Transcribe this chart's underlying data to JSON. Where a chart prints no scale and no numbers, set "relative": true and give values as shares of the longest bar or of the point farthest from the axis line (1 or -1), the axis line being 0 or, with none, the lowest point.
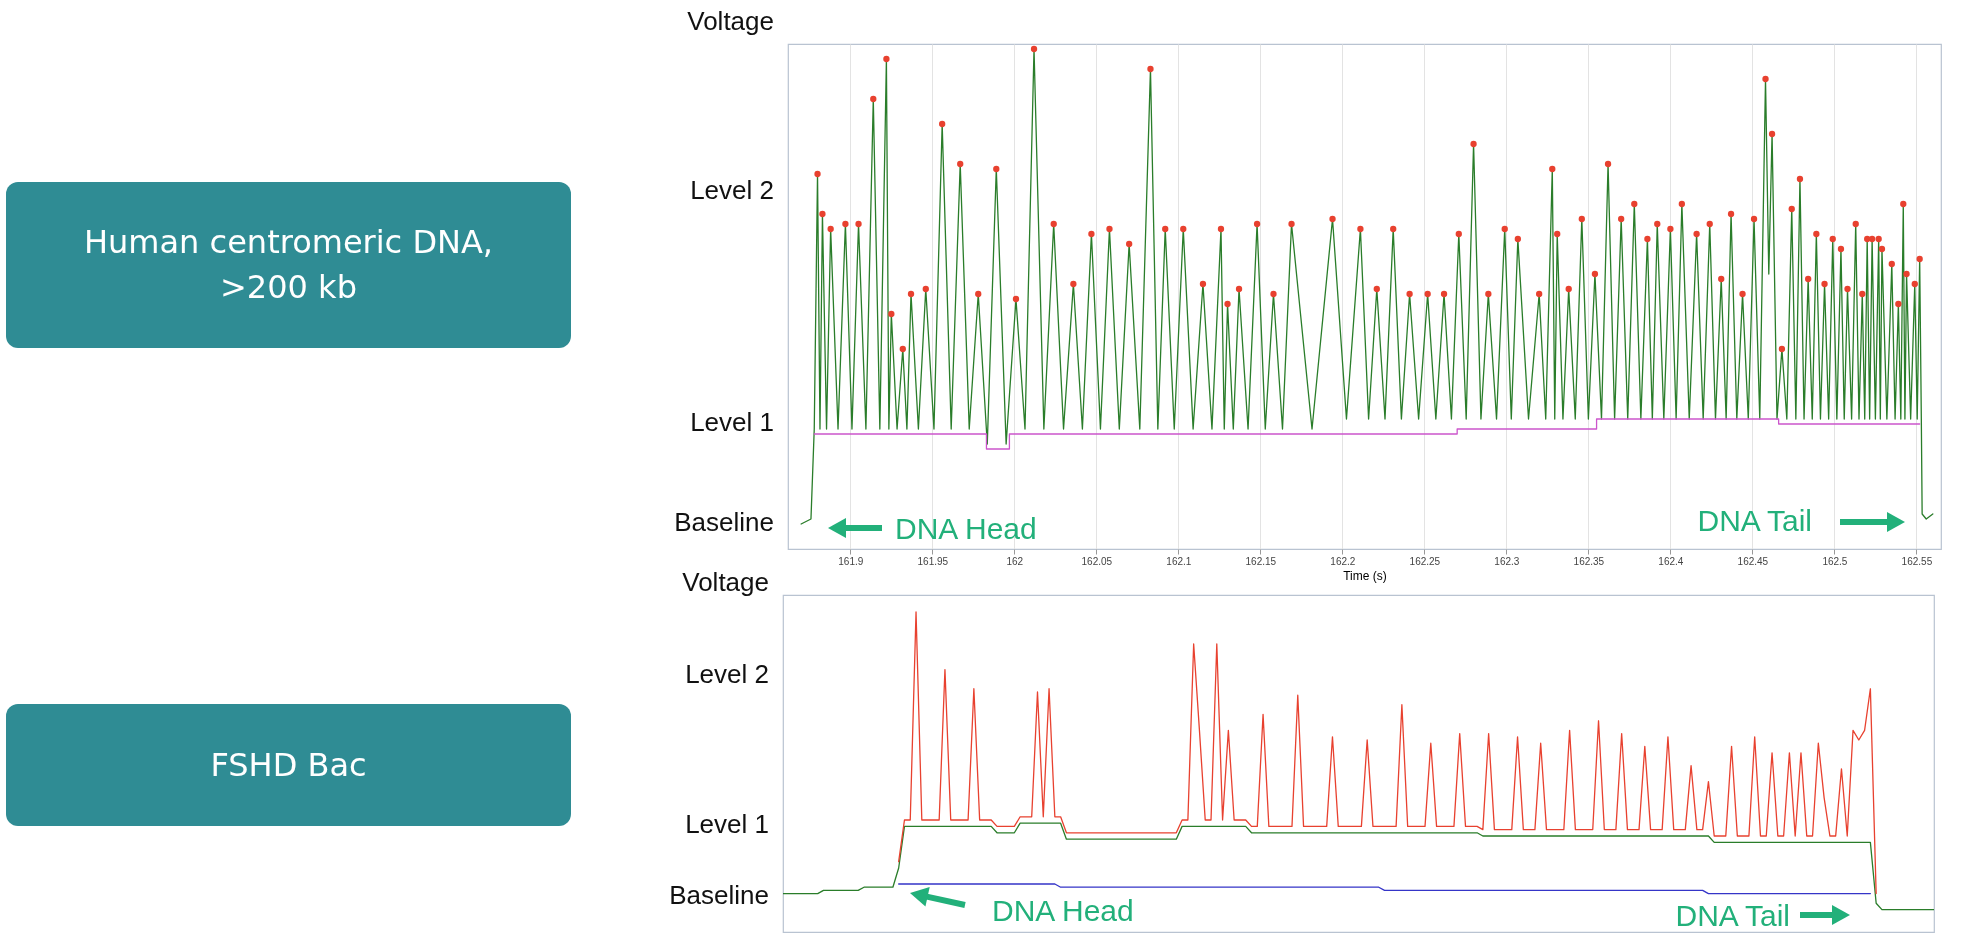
{
  "chart_data": [
    {
      "type": "line",
      "xlabel": "Time (s)",
      "ylabel": "Voltage",
      "relative": true,
      "grid": "x",
      "xlim": [
        161.862,
        162.565
      ],
      "xticks": [
        161.9,
        161.95,
        162,
        162.05,
        162.1,
        162.15,
        162.2,
        162.25,
        162.3,
        162.35,
        162.4,
        162.45,
        162.5,
        162.55
      ],
      "annotations": [
        "Human centromeric DNA, >200 kb",
        "Level 2",
        "Level 1",
        "Baseline",
        "DNA Head",
        "DNA Tail"
      ],
      "series": [
        {
          "color": "#2a7d2a",
          "x": [
            161.87,
            161.876,
            161.878,
            161.88,
            161.8815,
            161.883,
            161.8855,
            161.888,
            161.8925,
            161.897,
            161.901,
            161.905,
            161.9095,
            161.914,
            161.918,
            161.922,
            161.9235,
            161.925,
            161.9285,
            161.932,
            161.9345,
            161.937,
            161.9415,
            161.946,
            161.951,
            161.956,
            161.9615,
            161.967,
            161.9725,
            161.978,
            161.9835,
            161.989,
            161.995,
            162.001,
            162.0065,
            162.012,
            162.018,
            162.024,
            162.03,
            162.036,
            162.0415,
            162.047,
            162.0525,
            162.058,
            162.064,
            162.07,
            162.0765,
            162.083,
            162.0875,
            162.092,
            162.0975,
            162.103,
            162.109,
            162.115,
            162.1205,
            162.126,
            162.128,
            162.13,
            162.1335,
            162.137,
            162.1425,
            162.148,
            162.153,
            162.158,
            162.1635,
            162.169,
            162.1815,
            162.194,
            162.2025,
            162.211,
            162.216,
            162.221,
            162.226,
            162.231,
            162.236,
            162.241,
            162.2465,
            162.252,
            162.257,
            162.262,
            162.2665,
            162.271,
            162.2755,
            162.28,
            162.2845,
            162.289,
            162.294,
            162.299,
            162.303,
            162.307,
            162.3135,
            162.32,
            162.324,
            162.328,
            162.3295,
            162.331,
            162.3345,
            162.338,
            162.342,
            162.346,
            162.35,
            162.354,
            162.358,
            162.362,
            162.366,
            162.37,
            162.374,
            162.378,
            162.382,
            162.386,
            162.389,
            162.392,
            162.396,
            162.4,
            162.4035,
            162.407,
            162.4115,
            162.416,
            162.42,
            162.424,
            162.4275,
            162.431,
            162.434,
            162.437,
            162.4405,
            162.444,
            162.4475,
            162.451,
            162.4545,
            162.458,
            162.46,
            162.462,
            162.465,
            162.468,
            162.471,
            162.474,
            162.4765,
            162.479,
            162.4815,
            162.484,
            162.4865,
            162.489,
            162.4915,
            162.494,
            162.4965,
            162.499,
            162.5015,
            162.504,
            162.506,
            162.508,
            162.5105,
            162.513,
            162.515,
            162.517,
            162.5185,
            162.52,
            162.5215,
            162.523,
            162.525,
            162.527,
            162.528,
            162.529,
            162.532,
            162.535,
            162.537,
            162.539,
            162.5405,
            162.542,
            162.543,
            162.544,
            162.5465,
            162.549,
            162.5505,
            162.552,
            162.553,
            162.5535,
            162.556,
            162.56
          ],
          "values": [
            0.05,
            0.06,
            0.24,
            0.75,
            0.24,
            0.67,
            0.24,
            0.64,
            0.24,
            0.65,
            0.24,
            0.65,
            0.24,
            0.9,
            0.24,
            0.98,
            0.24,
            0.47,
            0.24,
            0.4,
            0.24,
            0.51,
            0.24,
            0.52,
            0.24,
            0.85,
            0.24,
            0.77,
            0.24,
            0.51,
            0.21,
            0.76,
            0.21,
            0.5,
            0.24,
            1.0,
            0.24,
            0.65,
            0.24,
            0.53,
            0.24,
            0.63,
            0.24,
            0.64,
            0.24,
            0.61,
            0.24,
            0.96,
            0.24,
            0.64,
            0.24,
            0.64,
            0.24,
            0.53,
            0.24,
            0.64,
            0.24,
            0.49,
            0.24,
            0.52,
            0.24,
            0.65,
            0.24,
            0.51,
            0.24,
            0.65,
            0.24,
            0.66,
            0.26,
            0.64,
            0.26,
            0.52,
            0.26,
            0.64,
            0.26,
            0.51,
            0.26,
            0.51,
            0.26,
            0.51,
            0.26,
            0.63,
            0.26,
            0.81,
            0.26,
            0.51,
            0.26,
            0.64,
            0.26,
            0.62,
            0.26,
            0.51,
            0.26,
            0.76,
            0.26,
            0.63,
            0.26,
            0.52,
            0.26,
            0.66,
            0.26,
            0.55,
            0.26,
            0.77,
            0.26,
            0.66,
            0.26,
            0.69,
            0.26,
            0.62,
            0.26,
            0.65,
            0.26,
            0.64,
            0.26,
            0.69,
            0.26,
            0.63,
            0.26,
            0.65,
            0.26,
            0.54,
            0.26,
            0.67,
            0.26,
            0.51,
            0.26,
            0.66,
            0.26,
            0.94,
            0.55,
            0.83,
            0.26,
            0.4,
            0.26,
            0.68,
            0.26,
            0.74,
            0.26,
            0.54,
            0.26,
            0.63,
            0.26,
            0.53,
            0.26,
            0.62,
            0.26,
            0.6,
            0.26,
            0.52,
            0.26,
            0.65,
            0.26,
            0.51,
            0.26,
            0.62,
            0.26,
            0.62,
            0.26,
            0.62,
            0.26,
            0.6,
            0.26,
            0.57,
            0.26,
            0.49,
            0.26,
            0.69,
            0.26,
            0.55,
            0.26,
            0.53,
            0.26,
            0.58,
            0.26,
            0.07,
            0.06,
            0.07
          ]
        },
        {
          "color": "#cc55cc",
          "x": [
            161.878,
            161.983,
            161.983,
            161.997,
            161.997,
            162.27,
            162.27,
            162.355,
            162.355,
            162.466,
            162.466,
            162.552
          ],
          "values": [
            0.23,
            0.23,
            0.2,
            0.2,
            0.23,
            0.23,
            0.24,
            0.24,
            0.26,
            0.26,
            0.25,
            0.25
          ]
        },
        {
          "type": "scatter",
          "marker": "circle",
          "color": "#e8412f",
          "x": [
            161.88,
            161.883,
            161.888,
            161.897,
            161.905,
            161.914,
            161.922,
            161.925,
            161.932,
            161.937,
            161.946,
            161.956,
            161.967,
            161.978,
            161.989,
            162.001,
            162.012,
            162.024,
            162.036,
            162.047,
            162.058,
            162.07,
            162.083,
            162.092,
            162.103,
            162.115,
            162.126,
            162.13,
            162.137,
            162.148,
            162.158,
            162.169,
            162.194,
            162.211,
            162.221,
            162.231,
            162.241,
            162.252,
            162.262,
            162.271,
            162.28,
            162.289,
            162.299,
            162.307,
            162.32,
            162.328,
            162.331,
            162.338,
            162.346,
            162.354,
            162.362,
            162.37,
            162.378,
            162.386,
            162.392,
            162.4,
            162.407,
            162.416,
            162.424,
            162.431,
            162.437,
            162.444,
            162.451,
            162.458,
            162.462,
            162.468,
            162.474,
            162.479,
            162.484,
            162.489,
            162.494,
            162.499,
            162.504,
            162.508,
            162.513,
            162.517,
            162.52,
            162.523,
            162.527,
            162.529,
            162.535,
            162.539,
            162.542,
            162.544,
            162.549,
            162.552
          ],
          "values": [
            0.75,
            0.67,
            0.64,
            0.65,
            0.65,
            0.9,
            0.98,
            0.47,
            0.4,
            0.51,
            0.52,
            0.85,
            0.77,
            0.51,
            0.76,
            0.5,
            1.0,
            0.65,
            0.53,
            0.63,
            0.64,
            0.61,
            0.96,
            0.64,
            0.64,
            0.53,
            0.64,
            0.49,
            0.52,
            0.65,
            0.51,
            0.65,
            0.66,
            0.64,
            0.52,
            0.64,
            0.51,
            0.51,
            0.51,
            0.63,
            0.81,
            0.51,
            0.64,
            0.62,
            0.51,
            0.76,
            0.63,
            0.52,
            0.66,
            0.55,
            0.77,
            0.66,
            0.69,
            0.62,
            0.65,
            0.64,
            0.69,
            0.63,
            0.65,
            0.54,
            0.67,
            0.51,
            0.66,
            0.94,
            0.83,
            0.4,
            0.68,
            0.74,
            0.54,
            0.63,
            0.53,
            0.62,
            0.6,
            0.52,
            0.65,
            0.51,
            0.62,
            0.62,
            0.62,
            0.6,
            0.57,
            0.49,
            0.69,
            0.55,
            0.53,
            0.58
          ]
        }
      ]
    },
    {
      "type": "line",
      "ylabel": "Voltage",
      "relative": true,
      "annotations": [
        "FSHD Bac",
        "Level 2",
        "Level 1",
        "Baseline",
        "DNA Head",
        "DNA Tail"
      ],
      "categories": [
        null,
        null,
        null,
        null,
        null,
        null,
        null,
        null,
        null,
        null,
        null,
        null,
        null,
        null,
        null,
        null,
        null,
        null,
        null,
        null,
        null,
        null,
        null,
        null,
        null,
        null,
        null,
        null,
        null,
        null,
        null,
        null,
        null,
        null,
        null,
        null,
        null,
        null,
        null,
        null,
        null,
        null,
        null,
        null,
        null,
        null,
        null,
        null,
        null,
        null,
        null,
        null,
        null,
        null,
        null,
        null,
        null,
        null,
        null,
        null,
        null,
        null,
        null,
        null,
        null,
        null,
        null,
        null,
        null,
        null,
        null,
        null,
        null,
        null,
        null,
        null,
        null,
        null,
        null,
        null,
        null,
        null,
        null,
        null,
        null,
        null,
        null,
        null,
        null,
        null,
        null,
        null,
        null,
        null,
        null,
        null,
        null,
        null,
        null,
        null,
        null,
        null,
        null,
        null,
        null,
        null,
        null,
        null,
        null,
        null,
        null,
        null,
        null,
        null,
        null,
        null,
        null,
        null,
        null,
        null,
        null,
        null,
        null,
        null,
        null,
        null,
        null,
        null,
        null,
        null,
        null,
        null,
        null,
        null,
        null,
        null,
        null,
        null,
        null,
        null,
        null,
        null,
        null,
        null,
        null,
        null,
        null,
        null,
        null,
        null,
        null,
        null,
        null,
        null,
        null,
        null,
        null,
        null,
        null,
        null,
        null,
        null,
        null,
        null,
        null,
        null,
        null,
        null,
        null,
        null,
        null,
        null,
        null,
        null,
        null,
        null,
        null,
        null,
        null,
        null,
        null,
        null,
        null,
        null,
        null,
        null,
        null,
        null,
        null,
        null,
        null,
        null,
        null,
        null,
        null,
        null,
        null,
        null,
        null,
        null
      ],
      "series": [
        {
          "color": "#2a7d2a",
          "values": [
            0.12,
            0.12,
            0.12,
            0.12,
            0.12,
            0.12,
            0.12,
            0.13,
            0.13,
            0.13,
            0.13,
            0.13,
            0.13,
            0.13,
            0.14,
            0.14,
            0.14,
            0.14,
            0.14,
            0.14,
            0.2,
            0.33,
            0.33,
            0.33,
            0.33,
            0.33,
            0.33,
            0.33,
            0.33,
            0.33,
            0.33,
            0.33,
            0.33,
            0.33,
            0.33,
            0.33,
            0.33,
            0.31,
            0.31,
            0.31,
            0.31,
            0.34,
            0.34,
            0.34,
            0.34,
            0.34,
            0.34,
            0.34,
            0.34,
            0.29,
            0.29,
            0.29,
            0.29,
            0.29,
            0.29,
            0.29,
            0.29,
            0.29,
            0.29,
            0.29,
            0.29,
            0.29,
            0.29,
            0.29,
            0.29,
            0.29,
            0.29,
            0.29,
            0.29,
            0.33,
            0.33,
            0.33,
            0.33,
            0.33,
            0.33,
            0.33,
            0.33,
            0.33,
            0.33,
            0.33,
            0.33,
            0.31,
            0.31,
            0.31,
            0.31,
            0.31,
            0.31,
            0.31,
            0.31,
            0.31,
            0.31,
            0.31,
            0.31,
            0.31,
            0.31,
            0.31,
            0.31,
            0.31,
            0.31,
            0.31,
            0.31,
            0.31,
            0.31,
            0.31,
            0.31,
            0.31,
            0.31,
            0.31,
            0.31,
            0.31,
            0.31,
            0.31,
            0.31,
            0.31,
            0.31,
            0.31,
            0.31,
            0.31,
            0.31,
            0.31,
            0.31,
            0.3,
            0.3,
            0.3,
            0.3,
            0.3,
            0.3,
            0.3,
            0.3,
            0.3,
            0.3,
            0.3,
            0.3,
            0.3,
            0.3,
            0.3,
            0.3,
            0.3,
            0.3,
            0.3,
            0.3,
            0.3,
            0.3,
            0.3,
            0.3,
            0.3,
            0.3,
            0.3,
            0.3,
            0.3,
            0.3,
            0.3,
            0.3,
            0.3,
            0.3,
            0.3,
            0.3,
            0.3,
            0.3,
            0.3,
            0.3,
            0.28,
            0.28,
            0.28,
            0.28,
            0.28,
            0.28,
            0.28,
            0.28,
            0.28,
            0.28,
            0.28,
            0.28,
            0.28,
            0.28,
            0.28,
            0.28,
            0.28,
            0.28,
            0.28,
            0.28,
            0.28,
            0.28,
            0.28,
            0.28,
            0.28,
            0.28,
            0.28,
            0.28,
            0.09,
            0.07,
            0.07,
            0.07,
            0.07,
            0.07,
            0.07,
            0.07,
            0.07,
            0.07,
            0.07
          ]
        },
        {
          "color": "#e8412f",
          "values": [
            null,
            null,
            null,
            null,
            null,
            null,
            null,
            null,
            null,
            null,
            null,
            null,
            null,
            null,
            null,
            null,
            null,
            null,
            null,
            null,
            0.22,
            0.35,
            0.35,
            1.0,
            0.35,
            0.35,
            0.35,
            0.35,
            0.82,
            0.35,
            0.35,
            0.35,
            0.35,
            0.76,
            0.35,
            0.35,
            0.35,
            0.33,
            0.33,
            0.33,
            0.33,
            0.36,
            0.36,
            0.36,
            0.75,
            0.36,
            0.76,
            0.36,
            0.36,
            0.31,
            0.31,
            0.31,
            0.31,
            0.31,
            0.31,
            0.31,
            0.31,
            0.31,
            0.31,
            0.31,
            0.31,
            0.31,
            0.31,
            0.31,
            0.31,
            0.31,
            0.31,
            0.31,
            0.31,
            0.35,
            0.35,
            0.9,
            0.63,
            0.35,
            0.35,
            0.9,
            0.35,
            0.63,
            0.35,
            0.35,
            0.35,
            0.33,
            0.33,
            0.68,
            0.33,
            0.33,
            0.33,
            0.33,
            0.33,
            0.74,
            0.33,
            0.33,
            0.33,
            0.33,
            0.33,
            0.61,
            0.33,
            0.33,
            0.33,
            0.33,
            0.33,
            0.6,
            0.33,
            0.33,
            0.33,
            0.33,
            0.33,
            0.71,
            0.33,
            0.33,
            0.33,
            0.33,
            0.59,
            0.33,
            0.33,
            0.33,
            0.33,
            0.62,
            0.33,
            0.33,
            0.33,
            0.32,
            0.62,
            0.32,
            0.32,
            0.32,
            0.32,
            0.61,
            0.32,
            0.32,
            0.32,
            0.59,
            0.32,
            0.32,
            0.32,
            0.32,
            0.63,
            0.32,
            0.32,
            0.32,
            0.32,
            0.66,
            0.32,
            0.32,
            0.32,
            0.62,
            0.32,
            0.32,
            0.32,
            0.58,
            0.32,
            0.32,
            0.32,
            0.61,
            0.32,
            0.32,
            0.32,
            0.52,
            0.32,
            0.32,
            0.47,
            0.3,
            0.3,
            0.3,
            0.58,
            0.3,
            0.3,
            0.3,
            0.61,
            0.3,
            0.3,
            0.56,
            0.3,
            0.3,
            0.56,
            0.3,
            0.56,
            0.3,
            0.3,
            0.59,
            0.42,
            0.3,
            0.3,
            0.51,
            0.3,
            0.63,
            0.6,
            0.63,
            0.76,
            0.12,
            null,
            null,
            null,
            null,
            null,
            null,
            null,
            null,
            null,
            null
          ]
        },
        {
          "color": "#3535c8",
          "values": [
            null,
            null,
            null,
            null,
            null,
            null,
            null,
            null,
            null,
            null,
            null,
            null,
            null,
            null,
            null,
            null,
            null,
            null,
            null,
            null,
            0.15,
            0.15,
            0.15,
            0.15,
            0.15,
            0.15,
            0.15,
            0.15,
            0.15,
            0.15,
            0.15,
            0.15,
            0.15,
            0.15,
            0.15,
            0.15,
            0.15,
            0.15,
            0.15,
            0.15,
            0.15,
            0.15,
            0.15,
            0.15,
            0.15,
            0.15,
            0.15,
            0.15,
            0.14,
            0.14,
            0.14,
            0.14,
            0.14,
            0.14,
            0.14,
            0.14,
            0.14,
            0.14,
            0.14,
            0.14,
            0.14,
            0.14,
            0.14,
            0.14,
            0.14,
            0.14,
            0.14,
            0.14,
            0.14,
            0.14,
            0.14,
            0.14,
            0.14,
            0.14,
            0.14,
            0.14,
            0.14,
            0.14,
            0.14,
            0.14,
            0.14,
            0.14,
            0.14,
            0.14,
            0.14,
            0.14,
            0.14,
            0.14,
            0.14,
            0.14,
            0.14,
            0.14,
            0.14,
            0.14,
            0.14,
            0.14,
            0.14,
            0.14,
            0.14,
            0.14,
            0.14,
            0.14,
            0.14,
            0.14,
            0.13,
            0.13,
            0.13,
            0.13,
            0.13,
            0.13,
            0.13,
            0.13,
            0.13,
            0.13,
            0.13,
            0.13,
            0.13,
            0.13,
            0.13,
            0.13,
            0.13,
            0.13,
            0.13,
            0.13,
            0.13,
            0.13,
            0.13,
            0.13,
            0.13,
            0.13,
            0.13,
            0.13,
            0.13,
            0.13,
            0.13,
            0.13,
            0.13,
            0.13,
            0.13,
            0.13,
            0.13,
            0.13,
            0.13,
            0.13,
            0.13,
            0.13,
            0.13,
            0.13,
            0.13,
            0.13,
            0.13,
            0.13,
            0.13,
            0.13,
            0.13,
            0.13,
            0.13,
            0.13,
            0.13,
            0.13,
            0.12,
            0.12,
            0.12,
            0.12,
            0.12,
            0.12,
            0.12,
            0.12,
            0.12,
            0.12,
            0.12,
            0.12,
            0.12,
            0.12,
            0.12,
            0.12,
            0.12,
            0.12,
            0.12,
            0.12,
            0.12,
            0.12,
            0.12,
            0.12,
            0.12,
            0.12,
            0.12,
            0.12,
            0.12,
            null,
            null,
            null,
            null,
            null,
            null,
            null,
            null,
            null,
            null,
            null
          ]
        }
      ]
    }
  ]
}
